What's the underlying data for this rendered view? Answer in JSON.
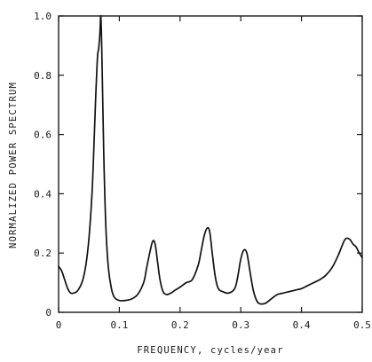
{
  "chart_data": {
    "type": "line",
    "title": "",
    "xlabel": "FREQUENCY, cycles/year",
    "ylabel": "NORMALIZED POWER SPECTRUM",
    "xlim": [
      0,
      0.5
    ],
    "ylim": [
      0,
      1.0
    ],
    "grid": false,
    "x_ticks": [
      0,
      0.1,
      0.2,
      0.3,
      0.4,
      0.5
    ],
    "x_tick_labels": [
      "0",
      "0.1",
      "0.2",
      "0.3",
      "0.4",
      "0.5"
    ],
    "y_ticks": [
      0,
      0.2,
      0.4,
      0.6,
      0.8,
      1.0
    ],
    "y_tick_labels": [
      "0",
      "0.2",
      "0.4",
      "0.6",
      "0.8",
      "1.0"
    ],
    "series": [
      {
        "x": [
          0.0,
          0.005,
          0.01,
          0.015,
          0.02,
          0.025,
          0.03,
          0.035,
          0.04,
          0.045,
          0.05,
          0.055,
          0.058,
          0.061,
          0.064,
          0.066,
          0.068,
          0.0695,
          0.071,
          0.073,
          0.075,
          0.078,
          0.082,
          0.087,
          0.092,
          0.1,
          0.11,
          0.12,
          0.13,
          0.14,
          0.145,
          0.15,
          0.155,
          0.159,
          0.163,
          0.167,
          0.172,
          0.178,
          0.185,
          0.192,
          0.2,
          0.21,
          0.22,
          0.23,
          0.235,
          0.24,
          0.245,
          0.249,
          0.253,
          0.258,
          0.263,
          0.27,
          0.28,
          0.29,
          0.295,
          0.3,
          0.305,
          0.31,
          0.315,
          0.32,
          0.325,
          0.33,
          0.34,
          0.35,
          0.36,
          0.37,
          0.38,
          0.39,
          0.4,
          0.41,
          0.42,
          0.43,
          0.44,
          0.45,
          0.46,
          0.47,
          0.475,
          0.48,
          0.485,
          0.49,
          0.495,
          0.5
        ],
        "y": [
          0.155,
          0.14,
          0.11,
          0.08,
          0.065,
          0.065,
          0.07,
          0.085,
          0.11,
          0.16,
          0.25,
          0.4,
          0.55,
          0.72,
          0.86,
          0.89,
          0.94,
          1.0,
          0.9,
          0.68,
          0.48,
          0.28,
          0.15,
          0.08,
          0.05,
          0.04,
          0.04,
          0.045,
          0.06,
          0.1,
          0.15,
          0.2,
          0.24,
          0.23,
          0.17,
          0.11,
          0.07,
          0.06,
          0.065,
          0.075,
          0.085,
          0.1,
          0.11,
          0.16,
          0.21,
          0.26,
          0.285,
          0.27,
          0.2,
          0.12,
          0.08,
          0.07,
          0.065,
          0.08,
          0.12,
          0.18,
          0.21,
          0.2,
          0.14,
          0.08,
          0.045,
          0.03,
          0.03,
          0.045,
          0.06,
          0.065,
          0.07,
          0.075,
          0.08,
          0.09,
          0.1,
          0.11,
          0.125,
          0.15,
          0.19,
          0.24,
          0.25,
          0.245,
          0.23,
          0.22,
          0.2,
          0.185
        ]
      }
    ]
  }
}
